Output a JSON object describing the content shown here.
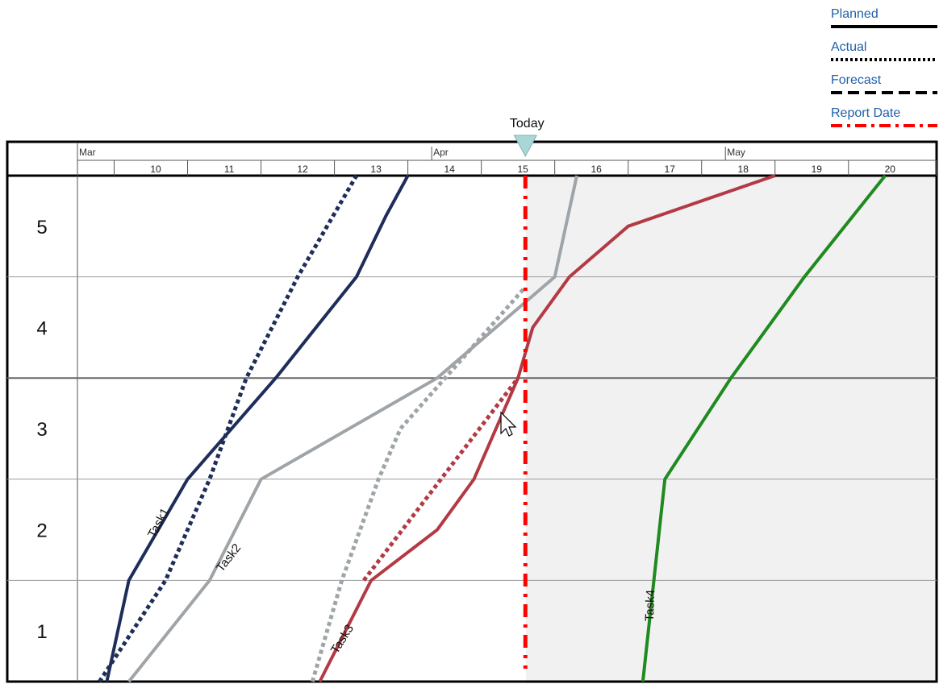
{
  "chart_data": {
    "type": "line",
    "colors": {
      "task1": "#1e2d5a",
      "task2": "#9ea4a8",
      "task3": "#b33a44",
      "task4": "#1f8a1f",
      "report_date": "#ff0000",
      "legend_text": "#1f5fa8"
    },
    "legend": {
      "placement": "top-right",
      "items": [
        {
          "label": "Planned",
          "style": "solid"
        },
        {
          "label": "Actual",
          "style": "dotted"
        },
        {
          "label": "Forecast",
          "style": "dashed"
        },
        {
          "label": "Report Date",
          "style": "dash-dot"
        }
      ]
    },
    "today_label": "Today",
    "x_axis": {
      "months": [
        {
          "label": "Mar",
          "at": 9.0
        },
        {
          "label": "Apr",
          "at": 14.0
        },
        {
          "label": "May",
          "at": 18.0
        }
      ],
      "ticks": [
        "10",
        "11",
        "12",
        "13",
        "14",
        "15",
        "16",
        "17",
        "18",
        "19",
        "20"
      ],
      "range": [
        9.0,
        20.7
      ]
    },
    "y_axis": {
      "labels": [
        "1",
        "2",
        "3",
        "4",
        "5"
      ],
      "range": [
        0,
        5
      ]
    },
    "report_date": 15.1,
    "series": [
      {
        "name": "Task1",
        "key": "task1",
        "kind": "planned",
        "points": [
          [
            9.4,
            0
          ],
          [
            9.7,
            1
          ],
          [
            10.5,
            2
          ],
          [
            11.7,
            3
          ],
          [
            12.8,
            4
          ],
          [
            13.2,
            4.6
          ],
          [
            13.5,
            5
          ]
        ]
      },
      {
        "name": "Task1",
        "key": "task1",
        "kind": "actual",
        "points": [
          [
            9.3,
            0
          ],
          [
            10.2,
            1
          ],
          [
            10.8,
            2
          ],
          [
            11.3,
            3
          ],
          [
            12.0,
            4
          ],
          [
            12.8,
            5
          ]
        ]
      },
      {
        "name": "Task2",
        "key": "task2",
        "kind": "planned",
        "points": [
          [
            9.7,
            0
          ],
          [
            10.8,
            1
          ],
          [
            11.5,
            2
          ],
          [
            13.9,
            3
          ],
          [
            15.5,
            4
          ],
          [
            15.8,
            5
          ]
        ]
      },
      {
        "name": "Task2",
        "key": "task2",
        "kind": "actual",
        "points": [
          [
            12.2,
            0
          ],
          [
            12.6,
            1
          ],
          [
            13.1,
            2
          ],
          [
            13.4,
            2.5
          ],
          [
            15.1,
            3.9
          ]
        ]
      },
      {
        "name": "Task3",
        "key": "task3",
        "kind": "planned",
        "points": [
          [
            12.3,
            0
          ],
          [
            13.0,
            1
          ],
          [
            13.9,
            1.5
          ],
          [
            14.4,
            2
          ],
          [
            15.0,
            3
          ],
          [
            15.2,
            3.5
          ],
          [
            15.7,
            4
          ],
          [
            16.5,
            4.5
          ],
          [
            18.5,
            5
          ]
        ]
      },
      {
        "name": "Task3",
        "key": "task3",
        "kind": "actual",
        "points": [
          [
            12.9,
            1
          ],
          [
            15.0,
            3
          ]
        ]
      },
      {
        "name": "Task4",
        "key": "task4",
        "kind": "planned",
        "points": [
          [
            16.7,
            0
          ],
          [
            17.0,
            2
          ],
          [
            17.9,
            3
          ],
          [
            18.9,
            4
          ],
          [
            20.0,
            5
          ]
        ]
      }
    ],
    "task_labels": [
      {
        "text": "Task1",
        "x": 10.15,
        "y": 1.55,
        "angle": -62
      },
      {
        "text": "Task2",
        "x": 11.1,
        "y": 1.2,
        "angle": -52
      },
      {
        "text": "Task3",
        "x": 12.65,
        "y": 0.4,
        "angle": -58
      },
      {
        "text": "Task4",
        "x": 16.85,
        "y": 0.75,
        "angle": -88
      }
    ]
  }
}
